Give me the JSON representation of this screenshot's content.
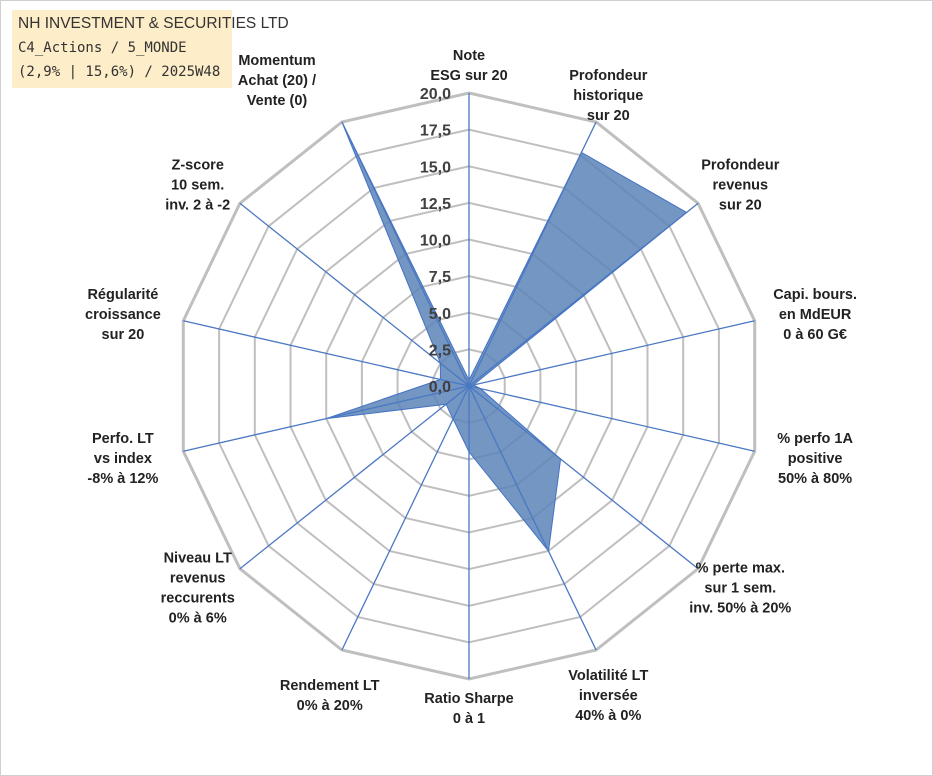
{
  "chart_data": {
    "type": "radar",
    "title_lines": [
      "NH INVESTMENT & SECURITIES LTD",
      "C4_Actions / 5_MONDE",
      "(2,9% | 15,6%) / 2025W48"
    ],
    "r_range": [
      0,
      20
    ],
    "r_ticks": [
      "0,0",
      "2,5",
      "5,0",
      "7,5",
      "10,0",
      "12,5",
      "15,0",
      "17,5",
      "20,0"
    ],
    "grid": true,
    "axes": [
      {
        "lines": [
          "Note",
          "ESG sur 20"
        ],
        "value": 0.4
      },
      {
        "lines": [
          "Profondeur",
          "historique",
          "sur 20"
        ],
        "value": 17.7
      },
      {
        "lines": [
          "Profondeur",
          "revenus",
          "sur 20"
        ],
        "value": 19.0
      },
      {
        "lines": [
          "Capi. bours.",
          "en MdEUR",
          "0 à 60 G€"
        ],
        "value": 0.3
      },
      {
        "lines": [
          "% perfo 1A",
          "positive",
          "50% à 80%"
        ],
        "value": 0.8
      },
      {
        "lines": [
          "% perte max.",
          "sur 1 sem.",
          "inv. 50% à 20%"
        ],
        "value": 8.0
      },
      {
        "lines": [
          "Volatilité LT",
          "inversée",
          "40% à 0%"
        ],
        "value": 12.5
      },
      {
        "lines": [
          "Ratio Sharpe",
          "0 à 1"
        ],
        "value": 4.5
      },
      {
        "lines": [
          "Rendement LT",
          "0% à 20%"
        ],
        "value": 2.5
      },
      {
        "lines": [
          "Niveau LT",
          "revenus",
          "reccurents",
          "0% à 6%"
        ],
        "value": 2.0
      },
      {
        "lines": [
          "Perfo. LT",
          "vs index",
          "-8% à 12%"
        ],
        "value": 10.0
      },
      {
        "lines": [
          "Régularité",
          "croissance",
          "sur 20"
        ],
        "value": 2.0
      },
      {
        "lines": [
          "Z-score",
          "10 sem.",
          "inv. 2 à -2"
        ],
        "value": 2.5
      },
      {
        "lines": [
          "Momentum",
          "Achat (20) /",
          "Vente (0)"
        ],
        "value": 20.0
      }
    ],
    "fill_color": "#5b84b8",
    "line_color": "#4472c4",
    "grid_color": "#bfbfbf"
  }
}
